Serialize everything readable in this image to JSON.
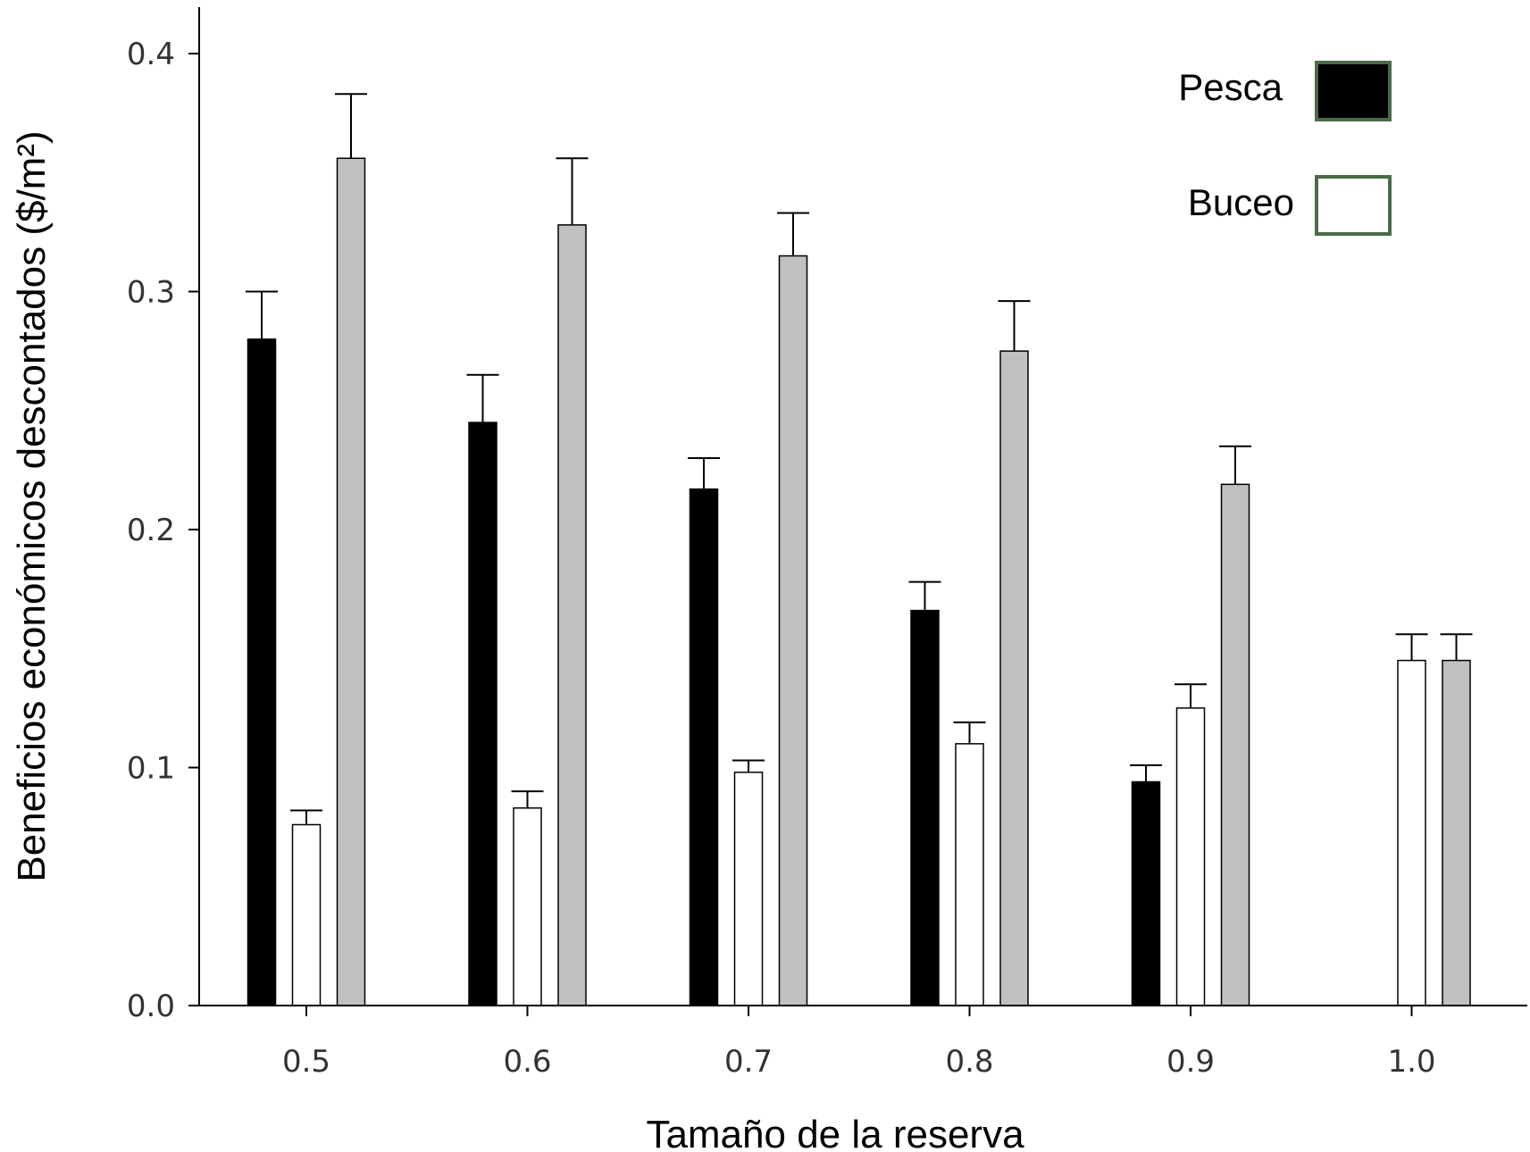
{
  "chart_data": {
    "type": "bar",
    "title": "",
    "xlabel": "Tamaño de la reserva",
    "ylabel": "Beneficios económicos descontados ($/m²)",
    "ylim": [
      0,
      0.42
    ],
    "yticks": [
      "0.0",
      "0.1",
      "0.2",
      "0.3",
      "0.4"
    ],
    "categories": [
      "0.5",
      "0.6",
      "0.7",
      "0.8",
      "0.9",
      "1.0"
    ],
    "grid": false,
    "legend": {
      "placement": "top-right",
      "border_color": "#4a6b47"
    },
    "series": [
      {
        "name": "Pesca",
        "color": "#000000",
        "values": [
          0.28,
          0.245,
          0.217,
          0.166,
          0.094,
          null
        ],
        "errors": [
          0.02,
          0.02,
          0.013,
          0.012,
          0.007,
          null
        ]
      },
      {
        "name": "Buceo",
        "color": "#ffffff",
        "values": [
          0.076,
          0.083,
          0.098,
          0.11,
          0.125,
          0.145
        ],
        "errors": [
          0.006,
          0.007,
          0.005,
          0.009,
          0.01,
          0.011
        ]
      },
      {
        "color": "#c0c0c0",
        "values": [
          0.356,
          0.328,
          0.315,
          0.275,
          0.219,
          0.145
        ],
        "errors": [
          0.027,
          0.028,
          0.018,
          0.021,
          0.016,
          0.011
        ]
      }
    ]
  }
}
